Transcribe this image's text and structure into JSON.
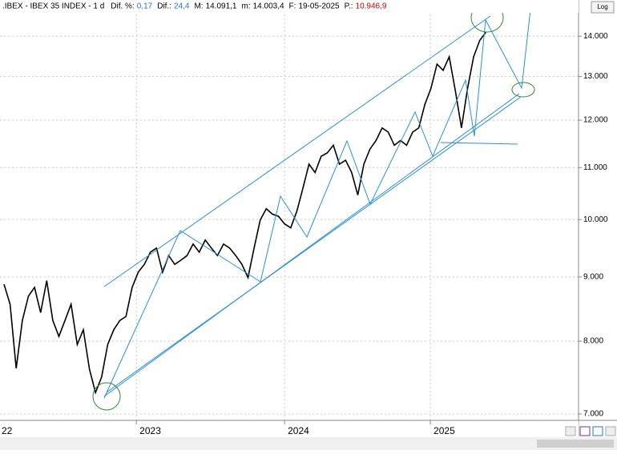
{
  "header": {
    "symbol": ".IBEX - IBEX 35 INDEX - 1 d",
    "items": [
      {
        "label": "Dif. %:",
        "value": "0,17"
      },
      {
        "label": "Dif.:",
        "value": "24,4"
      },
      {
        "label": "M:",
        "value": "14.091,1"
      },
      {
        "label": "m:",
        "value": "14.003,4"
      },
      {
        "label": "F:",
        "value": "19-05-2025"
      },
      {
        "label": "P.:",
        "value": "10.946,9"
      }
    ],
    "log_button": "Log"
  },
  "chart_data": {
    "type": "line",
    "log_scale": true,
    "grid": true,
    "xlim": [
      -0.66,
      94.2
    ],
    "xticks": [
      {
        "value": -1.5,
        "label": "22"
      },
      {
        "value": 21.7,
        "label": "2023"
      },
      {
        "value": 46.0,
        "label": "2024"
      },
      {
        "value": 69.9,
        "label": "2025"
      }
    ],
    "ylim": [
      6918,
      14785
    ],
    "yticks": [
      {
        "value": 7000,
        "label": "7.000"
      },
      {
        "value": 8000,
        "label": "8.000"
      },
      {
        "value": 9000,
        "label": "9.000"
      },
      {
        "value": 10000,
        "label": "10.000"
      },
      {
        "value": 11000,
        "label": "11.000"
      },
      {
        "value": 12000,
        "label": "12.000"
      },
      {
        "value": 13000,
        "label": "13.000"
      },
      {
        "value": 14000,
        "label": "14.000"
      }
    ],
    "series": [
      {
        "color": "#000000",
        "values": [
          8880,
          8560,
          7610,
          8310,
          8690,
          8830,
          8430,
          8940,
          8310,
          8070,
          8310,
          8560,
          7950,
          8170,
          7600,
          7280,
          7490,
          7950,
          8170,
          8310,
          8370,
          8830,
          9080,
          9210,
          9420,
          9490,
          9080,
          9360,
          9210,
          9280,
          9360,
          9560,
          9420,
          9630,
          9490,
          9360,
          9560,
          9490,
          9360,
          9210,
          8990,
          9490,
          9990,
          10200,
          10100,
          10060,
          9920,
          9850,
          10150,
          10590,
          11070,
          10900,
          11230,
          11300,
          11460,
          11070,
          11150,
          10900,
          10460,
          11070,
          11380,
          11560,
          11830,
          11740,
          11460,
          11560,
          11460,
          11740,
          11830,
          12350,
          12720,
          13300,
          13150,
          13480,
          12660,
          11830,
          12720,
          13480,
          13890,
          14100
        ]
      }
    ]
  }
}
